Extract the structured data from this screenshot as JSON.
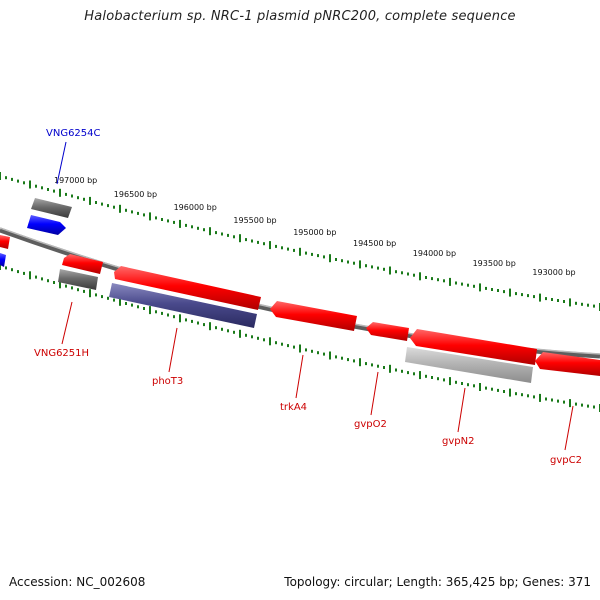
{
  "title": "Halobacterium sp. NRC-1 plasmid pNRC200, complete sequence",
  "footer": {
    "accession": "Accession: NC_002608",
    "topology": "Topology: circular; Length: 365,425 bp; Genes: 371"
  },
  "colors": {
    "forward_gene": "#ff0000",
    "reverse_gene": "#ff0000",
    "blue_gene": "#0000ff",
    "gray_gene": "#707070",
    "light_gray_gene": "#b8b8b8",
    "purple_gene": "#4a4a8c",
    "tick": "#1a7a1a",
    "backbone": "#808080",
    "label_blue": "#0000cc",
    "label_red": "#cc0000"
  },
  "ticks": [
    {
      "label": "197000 bp"
    },
    {
      "label": "196500 bp"
    },
    {
      "label": "196000 bp"
    },
    {
      "label": "195500 bp"
    },
    {
      "label": "195000 bp"
    },
    {
      "label": "194500 bp"
    },
    {
      "label": "194000 bp"
    },
    {
      "label": "193500 bp"
    },
    {
      "label": "193000 bp"
    }
  ],
  "genes": [
    {
      "label": "VNG6254C",
      "color": "blue"
    },
    {
      "label": "VNG6251H",
      "color": "red"
    },
    {
      "label": "phoT3",
      "color": "red"
    },
    {
      "label": "trkA4",
      "color": "red"
    },
    {
      "label": "gvpO2",
      "color": "red"
    },
    {
      "label": "gvpN2",
      "color": "red"
    },
    {
      "label": "gvpC2",
      "color": "red"
    }
  ]
}
